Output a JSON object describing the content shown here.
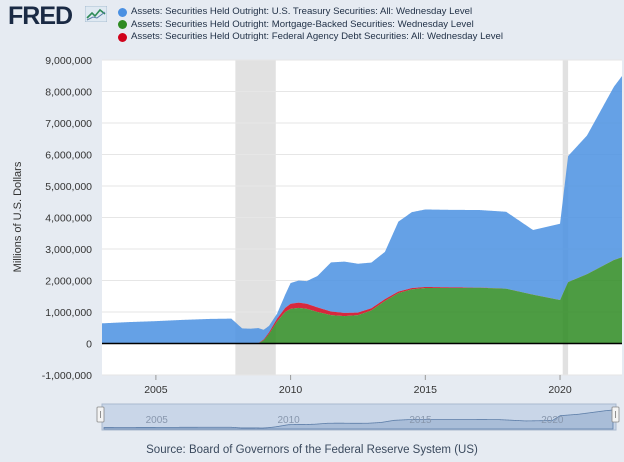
{
  "logo": {
    "text": "FRED",
    "icon": "fred-chart-icon"
  },
  "legend": [
    {
      "label": "Assets: Securities Held Outright: U.S. Treasury Securities: All: Wednesday Level",
      "color": "#4a90e2"
    },
    {
      "label": "Assets: Securities Held Outright: Mortgage-Backed Securities: Wednesday Level",
      "color": "#2e8b22"
    },
    {
      "label": "Assets: Securities Held Outright: Federal Agency Debt Securities: All: Wednesday Level",
      "color": "#d0021b"
    }
  ],
  "source": "Source: Board of Governors of the Federal Reserve System (US)",
  "chart_data": {
    "type": "area",
    "ylabel": "Millions of U.S. Dollars",
    "xlim": [
      2003.0,
      2022.3
    ],
    "ylim": [
      -1000000,
      9000000
    ],
    "yticks": [
      -1000000,
      0,
      1000000,
      2000000,
      3000000,
      4000000,
      5000000,
      6000000,
      7000000,
      8000000,
      9000000
    ],
    "ytick_labels": [
      "-1,000,000",
      "0",
      "1,000,000",
      "2,000,000",
      "3,000,000",
      "4,000,000",
      "5,000,000",
      "6,000,000",
      "7,000,000",
      "8,000,000",
      "9,000,000"
    ],
    "xticks": [
      2005,
      2010,
      2015,
      2020
    ],
    "xtick_labels": [
      "2005",
      "2010",
      "2015",
      "2020"
    ],
    "recessions": [
      [
        2007.95,
        2009.45
      ],
      [
        2020.1,
        2020.3
      ]
    ],
    "stacked": true,
    "series": [
      {
        "name": "Assets: Securities Held Outright: Federal Agency Debt Securities: All: Wednesday Level",
        "color": "#d0021b",
        "x": [
          2003.0,
          2008.5,
          2008.8,
          2009.0,
          2009.2,
          2009.5,
          2009.8,
          2010.0,
          2010.3,
          2010.6,
          2011.0,
          2011.5,
          2012.0,
          2012.5,
          2013.0,
          2013.5,
          2014.0,
          2014.5,
          2015.0,
          2016.0,
          2017.0,
          2018.0,
          2019.0,
          2020.0,
          2020.3,
          2021.0,
          2022.0,
          2022.3
        ],
        "values": [
          0,
          0,
          10000,
          25000,
          50000,
          90000,
          130000,
          160000,
          168000,
          160000,
          145000,
          115000,
          100000,
          82000,
          70000,
          58000,
          48000,
          40000,
          35000,
          22000,
          8000,
          2000,
          2000,
          2000,
          2000,
          2000,
          2000,
          2000
        ]
      },
      {
        "name": "Assets: Securities Held Outright: Mortgage-Backed Securities: Wednesday Level",
        "color": "#2e8b22",
        "x": [
          2003.0,
          2008.5,
          2008.8,
          2009.0,
          2009.2,
          2009.5,
          2009.8,
          2010.0,
          2010.3,
          2010.6,
          2011.0,
          2011.5,
          2012.0,
          2012.5,
          2013.0,
          2013.5,
          2014.0,
          2014.5,
          2015.0,
          2016.0,
          2017.0,
          2018.0,
          2019.0,
          2020.0,
          2020.3,
          2021.0,
          2022.0,
          2022.3
        ],
        "values": [
          0,
          0,
          0,
          100000,
          300000,
          700000,
          1000000,
          1100000,
          1130000,
          1100000,
          1000000,
          900000,
          870000,
          900000,
          1050000,
          1350000,
          1600000,
          1720000,
          1760000,
          1760000,
          1770000,
          1740000,
          1550000,
          1380000,
          1950000,
          2200000,
          2650000,
          2740000
        ]
      },
      {
        "name": "Assets: Securities Held Outright: U.S. Treasury Securities: All: Wednesday Level",
        "color": "#4a90e2",
        "x": [
          2003.0,
          2004.0,
          2005.0,
          2006.0,
          2007.0,
          2007.8,
          2008.2,
          2008.5,
          2008.8,
          2009.0,
          2009.2,
          2009.5,
          2009.8,
          2010.0,
          2010.3,
          2010.6,
          2011.0,
          2011.5,
          2012.0,
          2012.5,
          2013.0,
          2013.5,
          2014.0,
          2014.5,
          2015.0,
          2016.0,
          2017.0,
          2018.0,
          2019.0,
          2020.0,
          2020.3,
          2021.0,
          2022.0,
          2022.3
        ],
        "values": [
          640000,
          680000,
          710000,
          750000,
          780000,
          790000,
          480000,
          470000,
          480000,
          310000,
          210000,
          160000,
          420000,
          660000,
          700000,
          720000,
          1000000,
          1560000,
          1630000,
          1550000,
          1450000,
          1500000,
          2220000,
          2410000,
          2460000,
          2460000,
          2460000,
          2440000,
          2050000,
          2420000,
          4000000,
          4400000,
          5500000,
          5750000
        ]
      }
    ]
  }
}
